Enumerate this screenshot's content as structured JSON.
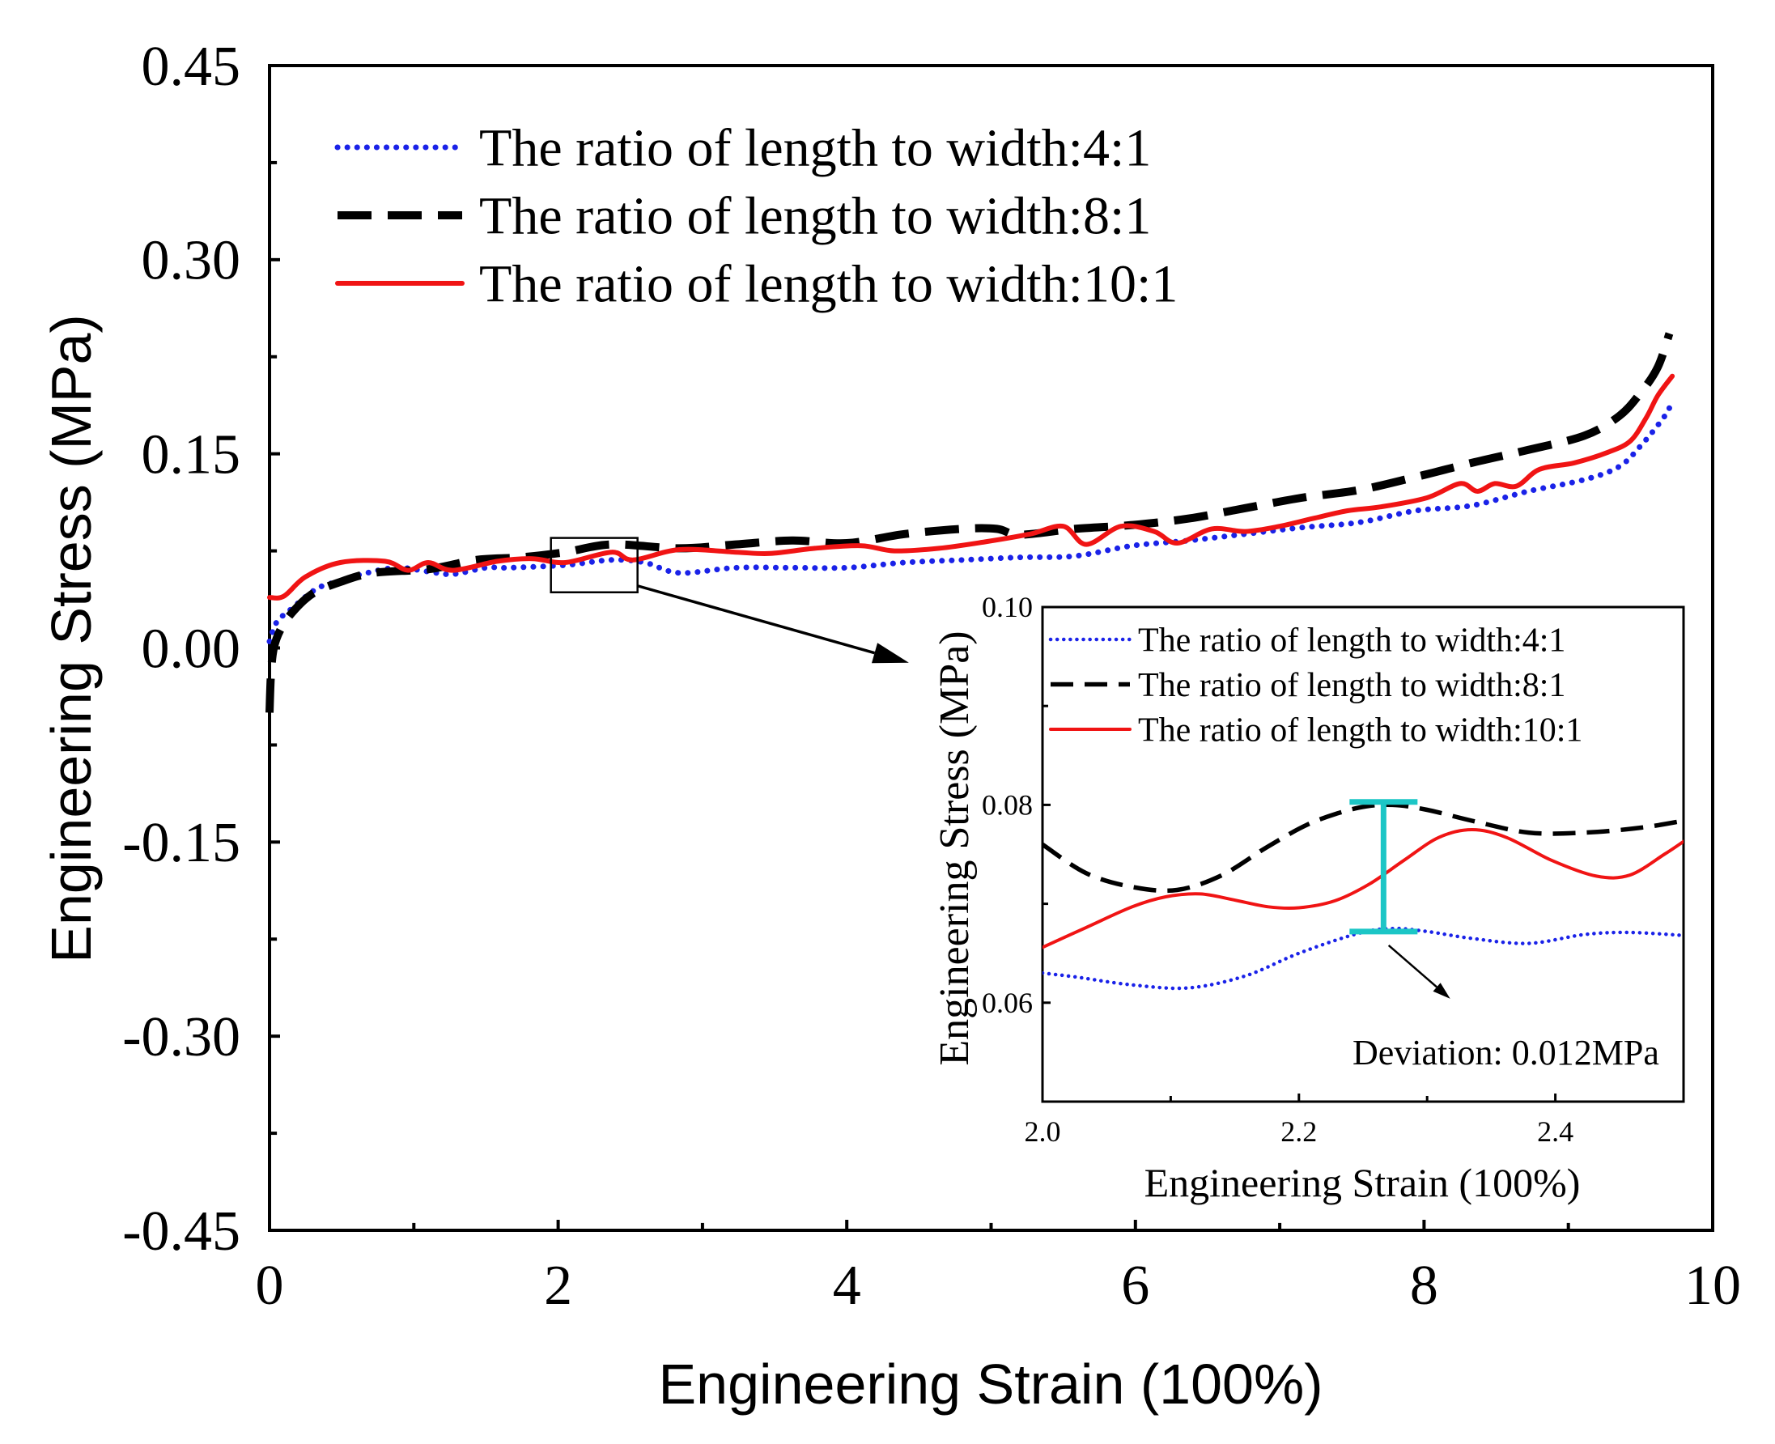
{
  "chart_data": [
    {
      "type": "line",
      "title": "",
      "xlabel": "Engineering Strain (100%)",
      "ylabel": "Engineering Stress (MPa)",
      "xlim": [
        0,
        10
      ],
      "ylim": [
        -0.45,
        0.45
      ],
      "x_ticks": [
        "0",
        "2",
        "4",
        "6",
        "8",
        "10"
      ],
      "y_ticks": [
        "0.45",
        "0.30",
        "0.15",
        "0.00",
        "-0.15",
        "-0.30",
        "-0.45"
      ],
      "grid": false,
      "legend": "top-left",
      "zoom_box": {
        "x": [
          1.95,
          2.55
        ],
        "y": [
          0.043,
          0.085
        ]
      },
      "series": [
        {
          "name": "The ratio of length to width:4:1",
          "color": "#1a22e8",
          "style": "dotted",
          "x": [
            0,
            0.05,
            0.15,
            0.33,
            0.5,
            0.64,
            0.88,
            1.1,
            1.27,
            1.5,
            1.66,
            2.05,
            2.37,
            2.6,
            2.84,
            3.23,
            3.62,
            4.0,
            4.4,
            4.8,
            5.2,
            5.58,
            5.98,
            6.37,
            6.76,
            7.15,
            7.55,
            7.94,
            8.33,
            8.72,
            9.11,
            9.35,
            9.5,
            9.66,
            9.72
          ],
          "y": [
            0.005,
            0.02,
            0.03,
            0.046,
            0.052,
            0.057,
            0.062,
            0.059,
            0.057,
            0.062,
            0.062,
            0.064,
            0.068,
            0.066,
            0.058,
            0.062,
            0.062,
            0.062,
            0.066,
            0.068,
            0.07,
            0.071,
            0.079,
            0.083,
            0.088,
            0.093,
            0.097,
            0.106,
            0.11,
            0.121,
            0.13,
            0.14,
            0.156,
            0.178,
            0.19
          ]
        },
        {
          "name": "The ratio of length to width:8:1",
          "color": "#000000",
          "style": "dashed",
          "x": [
            0,
            0.01,
            0.03,
            0.08,
            0.17,
            0.3,
            0.49,
            0.72,
            1.11,
            1.43,
            1.74,
            2.05,
            2.37,
            2.84,
            3.23,
            3.62,
            4.0,
            4.4,
            4.8,
            5.04,
            5.2,
            5.58,
            5.98,
            6.37,
            6.76,
            7.15,
            7.55,
            7.94,
            8.33,
            8.72,
            9.11,
            9.35,
            9.5,
            9.62,
            9.7
          ],
          "y": [
            -0.05,
            -0.02,
            0.0,
            0.015,
            0.029,
            0.042,
            0.051,
            0.058,
            0.061,
            0.068,
            0.07,
            0.074,
            0.08,
            0.077,
            0.08,
            0.083,
            0.081,
            0.088,
            0.092,
            0.092,
            0.0875,
            0.092,
            0.095,
            0.1,
            0.108,
            0.116,
            0.122,
            0.132,
            0.143,
            0.153,
            0.164,
            0.179,
            0.197,
            0.217,
            0.243
          ]
        },
        {
          "name": "The ratio of length to width:10:1",
          "color": "#f01414",
          "style": "solid",
          "x": [
            0,
            0.1,
            0.25,
            0.49,
            0.8,
            0.96,
            1.1,
            1.27,
            1.58,
            1.82,
            2.05,
            2.37,
            2.52,
            2.84,
            3.23,
            3.47,
            3.78,
            4.1,
            4.33,
            4.64,
            4.96,
            5.27,
            5.5,
            5.66,
            5.9,
            6.13,
            6.29,
            6.53,
            6.76,
            7.0,
            7.23,
            7.47,
            7.7,
            8.02,
            8.25,
            8.37,
            8.49,
            8.64,
            8.8,
            9.04,
            9.27,
            9.43,
            9.54,
            9.62,
            9.72
          ],
          "y": [
            0.039,
            0.04,
            0.055,
            0.066,
            0.067,
            0.06,
            0.066,
            0.06,
            0.067,
            0.069,
            0.066,
            0.074,
            0.068,
            0.076,
            0.074,
            0.073,
            0.077,
            0.079,
            0.075,
            0.077,
            0.082,
            0.088,
            0.094,
            0.08,
            0.094,
            0.09,
            0.081,
            0.092,
            0.09,
            0.094,
            0.1,
            0.106,
            0.109,
            0.116,
            0.127,
            0.121,
            0.127,
            0.125,
            0.138,
            0.143,
            0.151,
            0.16,
            0.178,
            0.195,
            0.21
          ]
        }
      ]
    },
    {
      "type": "line",
      "title": "",
      "xlabel": "Engineering Strain (100%)",
      "ylabel": "Engineering Stress (MPa)",
      "xlim": [
        2.0,
        2.5
      ],
      "ylim": [
        0.05,
        0.1
      ],
      "x_ticks": [
        "2.0",
        "2.2",
        "2.4"
      ],
      "y_ticks": [
        "0.10",
        "0.08",
        "0.06"
      ],
      "grid": false,
      "legend": "top-left",
      "annotation": "Deviation: 0.012MPa",
      "error_bar": {
        "x": 2.266,
        "low": 0.0672,
        "high": 0.0803,
        "color": "#1cc6c6"
      },
      "series": [
        {
          "name": "The ratio of length to width:4:1",
          "color": "#1a22e8",
          "style": "dotted",
          "x": [
            2.0,
            2.026,
            2.07,
            2.114,
            2.158,
            2.2,
            2.246,
            2.273,
            2.3,
            2.335,
            2.379,
            2.423,
            2.458,
            2.5
          ],
          "y": [
            0.063,
            0.0626,
            0.0618,
            0.0615,
            0.0627,
            0.065,
            0.067,
            0.0675,
            0.0672,
            0.0665,
            0.066,
            0.0669,
            0.0671,
            0.0668
          ]
        },
        {
          "name": "The ratio of length to width:8:1",
          "color": "#000000",
          "style": "dashed",
          "x": [
            2.0,
            2.034,
            2.07,
            2.105,
            2.14,
            2.176,
            2.21,
            2.246,
            2.273,
            2.3,
            2.335,
            2.379,
            2.423,
            2.467,
            2.5
          ],
          "y": [
            0.076,
            0.0731,
            0.0717,
            0.0714,
            0.0729,
            0.0758,
            0.0782,
            0.0797,
            0.08,
            0.0795,
            0.0784,
            0.0772,
            0.0772,
            0.0777,
            0.0784
          ]
        },
        {
          "name": "The ratio of length to width:10:1",
          "color": "#f01414",
          "style": "solid",
          "x": [
            2.0,
            2.034,
            2.07,
            2.096,
            2.123,
            2.149,
            2.176,
            2.2,
            2.228,
            2.255,
            2.282,
            2.309,
            2.335,
            2.362,
            2.397,
            2.432,
            2.458,
            2.485,
            2.5
          ],
          "y": [
            0.0656,
            0.0676,
            0.0697,
            0.0707,
            0.071,
            0.0704,
            0.0697,
            0.0696,
            0.0703,
            0.072,
            0.0744,
            0.0767,
            0.0775,
            0.0767,
            0.0744,
            0.0728,
            0.0729,
            0.075,
            0.0763
          ]
        }
      ]
    }
  ]
}
